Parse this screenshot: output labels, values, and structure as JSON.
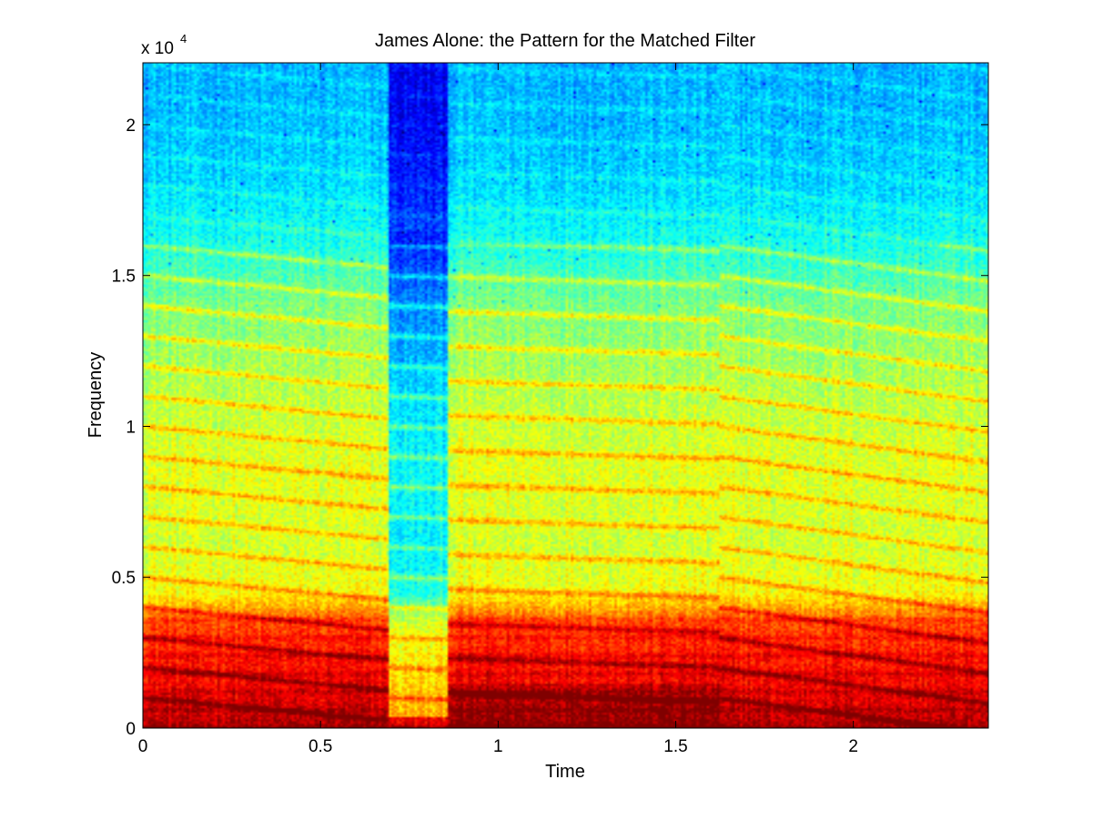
{
  "chart_data": {
    "type": "heatmap",
    "title": "James Alone: the Pattern for the Matched Filter",
    "xlabel": "Time",
    "ylabel": "Frequency",
    "y_multiplier_label": "x 10",
    "y_multiplier_exponent": "4",
    "xlim": [
      0,
      2.38
    ],
    "ylim": [
      0,
      22050
    ],
    "x_ticks": [
      0,
      0.5,
      1,
      1.5,
      2
    ],
    "x_tick_labels": [
      "0",
      "0.5",
      "1",
      "1.5",
      "2"
    ],
    "y_ticks": [
      0,
      5000,
      10000,
      15000,
      20000
    ],
    "y_tick_labels": [
      "0",
      "0.5",
      "1",
      "1.5",
      "2"
    ],
    "colormap": "jet",
    "color_scale": "relative magnitude (dB), 0 = low (blue), 1 = high (red)",
    "segments": [
      {
        "t_start": 0.0,
        "t_end": 0.69,
        "description": "voiced, harmonics throughout"
      },
      {
        "t_start": 0.69,
        "t_end": 0.86,
        "description": "quiet gap"
      },
      {
        "t_start": 0.86,
        "t_end": 1.62,
        "description": "voiced, strong low band to 1500 Hz"
      },
      {
        "t_start": 1.62,
        "t_end": 2.38,
        "description": "voiced, harmonics rising"
      }
    ],
    "magnitude_profile": {
      "frequency": [
        0,
        500,
        1500,
        2500,
        3500,
        4500,
        6000,
        8500,
        11000,
        14000,
        16000,
        18000,
        20000,
        22050
      ],
      "level": [
        0.96,
        0.92,
        0.88,
        0.85,
        0.8,
        0.62,
        0.58,
        0.6,
        0.56,
        0.5,
        0.4,
        0.34,
        0.31,
        0.3
      ]
    }
  }
}
